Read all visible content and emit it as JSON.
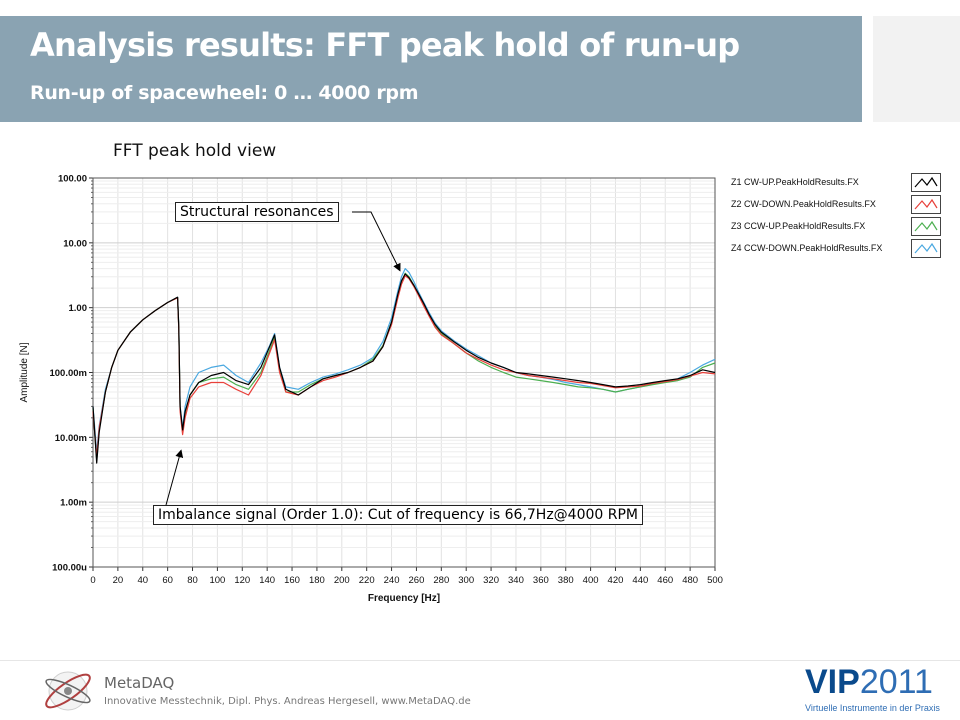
{
  "header": {
    "title": "Analysis results: FFT peak hold of run-up",
    "subtitle": "Run-up of spacewheel: 0 … 4000 rpm",
    "bar_color": "#8aa3b2"
  },
  "chart_data": {
    "type": "line",
    "title": "FFT peak hold view",
    "xlabel": "Frequency [Hz]",
    "ylabel": "Amplitude [N]",
    "x_ticks": [
      "0",
      "20",
      "40",
      "60",
      "80",
      "100",
      "120",
      "140",
      "160",
      "180",
      "200",
      "220",
      "240",
      "260",
      "280",
      "300",
      "320",
      "340",
      "360",
      "380",
      "400",
      "420",
      "440",
      "460",
      "480",
      "500"
    ],
    "y_ticks": [
      "100.00u",
      "1.00m",
      "10.00m",
      "100.00m",
      "1.00",
      "10.00",
      "100.00"
    ],
    "xlim": [
      0,
      500
    ],
    "ylim": [
      0.0001,
      100
    ],
    "y_scale": "log",
    "grid": true,
    "legend_position": "right",
    "series": [
      {
        "name": "Z1 CW-UP.PeakHoldResults.FX",
        "color": "#000000",
        "points": [
          [
            0,
            0.03
          ],
          [
            3,
            0.004
          ],
          [
            5,
            0.012
          ],
          [
            10,
            0.05
          ],
          [
            15,
            0.12
          ],
          [
            20,
            0.22
          ],
          [
            30,
            0.42
          ],
          [
            40,
            0.65
          ],
          [
            50,
            0.9
          ],
          [
            60,
            1.2
          ],
          [
            68,
            1.45
          ],
          [
            69,
            0.5
          ],
          [
            70,
            0.03
          ],
          [
            72,
            0.013
          ],
          [
            74,
            0.025
          ],
          [
            78,
            0.045
          ],
          [
            85,
            0.07
          ],
          [
            95,
            0.09
          ],
          [
            105,
            0.1
          ],
          [
            115,
            0.075
          ],
          [
            125,
            0.065
          ],
          [
            135,
            0.12
          ],
          [
            142,
            0.25
          ],
          [
            146,
            0.38
          ],
          [
            150,
            0.12
          ],
          [
            155,
            0.055
          ],
          [
            165,
            0.045
          ],
          [
            175,
            0.06
          ],
          [
            185,
            0.08
          ],
          [
            195,
            0.09
          ],
          [
            205,
            0.1
          ],
          [
            215,
            0.12
          ],
          [
            225,
            0.15
          ],
          [
            233,
            0.25
          ],
          [
            240,
            0.6
          ],
          [
            245,
            1.6
          ],
          [
            248,
            2.6
          ],
          [
            251,
            3.3
          ],
          [
            254,
            2.9
          ],
          [
            258,
            2.2
          ],
          [
            262,
            1.6
          ],
          [
            266,
            1.15
          ],
          [
            270,
            0.8
          ],
          [
            275,
            0.55
          ],
          [
            280,
            0.42
          ],
          [
            290,
            0.3
          ],
          [
            300,
            0.22
          ],
          [
            310,
            0.17
          ],
          [
            320,
            0.14
          ],
          [
            330,
            0.12
          ],
          [
            340,
            0.1
          ],
          [
            350,
            0.095
          ],
          [
            360,
            0.09
          ],
          [
            370,
            0.085
          ],
          [
            380,
            0.08
          ],
          [
            390,
            0.075
          ],
          [
            400,
            0.07
          ],
          [
            410,
            0.065
          ],
          [
            420,
            0.06
          ],
          [
            430,
            0.062
          ],
          [
            440,
            0.065
          ],
          [
            450,
            0.07
          ],
          [
            460,
            0.075
          ],
          [
            470,
            0.08
          ],
          [
            480,
            0.09
          ],
          [
            490,
            0.11
          ],
          [
            500,
            0.1
          ]
        ]
      },
      {
        "name": "Z2 CW-DOWN.PeakHoldResults.FX",
        "color": "#e8403a",
        "points": [
          [
            0,
            0.025
          ],
          [
            3,
            0.005
          ],
          [
            5,
            0.014
          ],
          [
            10,
            0.05
          ],
          [
            15,
            0.12
          ],
          [
            20,
            0.22
          ],
          [
            30,
            0.42
          ],
          [
            40,
            0.65
          ],
          [
            50,
            0.9
          ],
          [
            60,
            1.2
          ],
          [
            68,
            1.42
          ],
          [
            69,
            0.45
          ],
          [
            70,
            0.025
          ],
          [
            72,
            0.011
          ],
          [
            74,
            0.02
          ],
          [
            78,
            0.04
          ],
          [
            85,
            0.06
          ],
          [
            95,
            0.07
          ],
          [
            105,
            0.07
          ],
          [
            115,
            0.055
          ],
          [
            125,
            0.045
          ],
          [
            135,
            0.09
          ],
          [
            142,
            0.2
          ],
          [
            146,
            0.32
          ],
          [
            150,
            0.1
          ],
          [
            155,
            0.05
          ],
          [
            165,
            0.045
          ],
          [
            175,
            0.06
          ],
          [
            185,
            0.075
          ],
          [
            195,
            0.085
          ],
          [
            205,
            0.1
          ],
          [
            215,
            0.12
          ],
          [
            225,
            0.15
          ],
          [
            233,
            0.25
          ],
          [
            240,
            0.55
          ],
          [
            245,
            1.4
          ],
          [
            248,
            2.3
          ],
          [
            251,
            3.1
          ],
          [
            254,
            2.8
          ],
          [
            258,
            2.1
          ],
          [
            262,
            1.5
          ],
          [
            266,
            1.05
          ],
          [
            270,
            0.75
          ],
          [
            275,
            0.5
          ],
          [
            280,
            0.38
          ],
          [
            290,
            0.28
          ],
          [
            300,
            0.2
          ],
          [
            310,
            0.16
          ],
          [
            320,
            0.13
          ],
          [
            330,
            0.11
          ],
          [
            340,
            0.1
          ],
          [
            350,
            0.09
          ],
          [
            360,
            0.085
          ],
          [
            370,
            0.08
          ],
          [
            380,
            0.075
          ],
          [
            390,
            0.07
          ],
          [
            400,
            0.068
          ],
          [
            410,
            0.063
          ],
          [
            420,
            0.058
          ],
          [
            430,
            0.06
          ],
          [
            440,
            0.062
          ],
          [
            450,
            0.068
          ],
          [
            460,
            0.072
          ],
          [
            470,
            0.078
          ],
          [
            480,
            0.088
          ],
          [
            490,
            0.1
          ],
          [
            500,
            0.095
          ]
        ]
      },
      {
        "name": "Z3 CCW-UP.PeakHoldResults.FX",
        "color": "#4caf50",
        "points": [
          [
            0,
            0.028
          ],
          [
            3,
            0.0045
          ],
          [
            5,
            0.013
          ],
          [
            10,
            0.05
          ],
          [
            15,
            0.12
          ],
          [
            20,
            0.22
          ],
          [
            30,
            0.42
          ],
          [
            40,
            0.65
          ],
          [
            50,
            0.9
          ],
          [
            60,
            1.2
          ],
          [
            68,
            1.43
          ],
          [
            69,
            0.48
          ],
          [
            70,
            0.028
          ],
          [
            72,
            0.012
          ],
          [
            74,
            0.022
          ],
          [
            78,
            0.045
          ],
          [
            85,
            0.07
          ],
          [
            95,
            0.08
          ],
          [
            105,
            0.085
          ],
          [
            115,
            0.065
          ],
          [
            125,
            0.055
          ],
          [
            135,
            0.1
          ],
          [
            142,
            0.22
          ],
          [
            146,
            0.35
          ],
          [
            150,
            0.11
          ],
          [
            155,
            0.05
          ],
          [
            165,
            0.05
          ],
          [
            175,
            0.065
          ],
          [
            185,
            0.08
          ],
          [
            195,
            0.09
          ],
          [
            205,
            0.1
          ],
          [
            215,
            0.12
          ],
          [
            225,
            0.16
          ],
          [
            233,
            0.26
          ],
          [
            240,
            0.6
          ],
          [
            245,
            1.5
          ],
          [
            248,
            2.5
          ],
          [
            251,
            3.4
          ],
          [
            254,
            3.0
          ],
          [
            258,
            2.2
          ],
          [
            262,
            1.55
          ],
          [
            266,
            1.1
          ],
          [
            270,
            0.78
          ],
          [
            275,
            0.52
          ],
          [
            280,
            0.4
          ],
          [
            290,
            0.28
          ],
          [
            300,
            0.2
          ],
          [
            310,
            0.15
          ],
          [
            320,
            0.12
          ],
          [
            330,
            0.1
          ],
          [
            340,
            0.085
          ],
          [
            350,
            0.08
          ],
          [
            360,
            0.075
          ],
          [
            370,
            0.07
          ],
          [
            380,
            0.065
          ],
          [
            390,
            0.06
          ],
          [
            400,
            0.058
          ],
          [
            410,
            0.055
          ],
          [
            420,
            0.05
          ],
          [
            430,
            0.055
          ],
          [
            440,
            0.06
          ],
          [
            450,
            0.065
          ],
          [
            460,
            0.07
          ],
          [
            470,
            0.075
          ],
          [
            480,
            0.085
          ],
          [
            490,
            0.12
          ],
          [
            500,
            0.14
          ]
        ]
      },
      {
        "name": "Z4 CCW-DOWN.PeakHoldResults.FX",
        "color": "#4aa8e0",
        "points": [
          [
            0,
            0.03
          ],
          [
            3,
            0.006
          ],
          [
            5,
            0.015
          ],
          [
            10,
            0.055
          ],
          [
            15,
            0.12
          ],
          [
            20,
            0.22
          ],
          [
            30,
            0.42
          ],
          [
            40,
            0.65
          ],
          [
            50,
            0.9
          ],
          [
            60,
            1.2
          ],
          [
            68,
            1.44
          ],
          [
            69,
            0.5
          ],
          [
            70,
            0.03
          ],
          [
            72,
            0.014
          ],
          [
            74,
            0.03
          ],
          [
            78,
            0.06
          ],
          [
            85,
            0.1
          ],
          [
            95,
            0.12
          ],
          [
            105,
            0.13
          ],
          [
            115,
            0.09
          ],
          [
            125,
            0.07
          ],
          [
            135,
            0.14
          ],
          [
            142,
            0.26
          ],
          [
            146,
            0.4
          ],
          [
            150,
            0.12
          ],
          [
            155,
            0.06
          ],
          [
            165,
            0.055
          ],
          [
            175,
            0.07
          ],
          [
            185,
            0.085
          ],
          [
            195,
            0.095
          ],
          [
            205,
            0.11
          ],
          [
            215,
            0.13
          ],
          [
            225,
            0.17
          ],
          [
            233,
            0.3
          ],
          [
            240,
            0.7
          ],
          [
            245,
            1.8
          ],
          [
            248,
            3.0
          ],
          [
            251,
            4.0
          ],
          [
            254,
            3.5
          ],
          [
            258,
            2.5
          ],
          [
            262,
            1.7
          ],
          [
            266,
            1.2
          ],
          [
            270,
            0.85
          ],
          [
            275,
            0.58
          ],
          [
            280,
            0.44
          ],
          [
            290,
            0.31
          ],
          [
            300,
            0.23
          ],
          [
            310,
            0.18
          ],
          [
            320,
            0.14
          ],
          [
            330,
            0.12
          ],
          [
            340,
            0.1
          ],
          [
            350,
            0.09
          ],
          [
            360,
            0.085
          ],
          [
            370,
            0.078
          ],
          [
            380,
            0.07
          ],
          [
            390,
            0.065
          ],
          [
            400,
            0.06
          ],
          [
            410,
            0.055
          ],
          [
            420,
            0.05
          ],
          [
            430,
            0.055
          ],
          [
            440,
            0.06
          ],
          [
            450,
            0.066
          ],
          [
            460,
            0.072
          ],
          [
            470,
            0.08
          ],
          [
            480,
            0.1
          ],
          [
            490,
            0.13
          ],
          [
            500,
            0.16
          ]
        ]
      }
    ],
    "annotations": [
      {
        "text": "Structural resonances",
        "target": [
          250,
          3.0
        ]
      },
      {
        "text": "Imbalance signal (Order 1.0): Cut of frequency is 66,7Hz@4000 RPM",
        "target": [
          70,
          0.009
        ]
      }
    ]
  },
  "footer": {
    "brand": "MetaDAQ",
    "text": "Innovative Messtechnik, Dipl. Phys. Andreas Hergesell, www.MetaDAQ.de",
    "vip_part1": "VIP",
    "vip_part2": "2011",
    "vip_tagline": "Virtuelle Instrumente in der Praxis"
  }
}
